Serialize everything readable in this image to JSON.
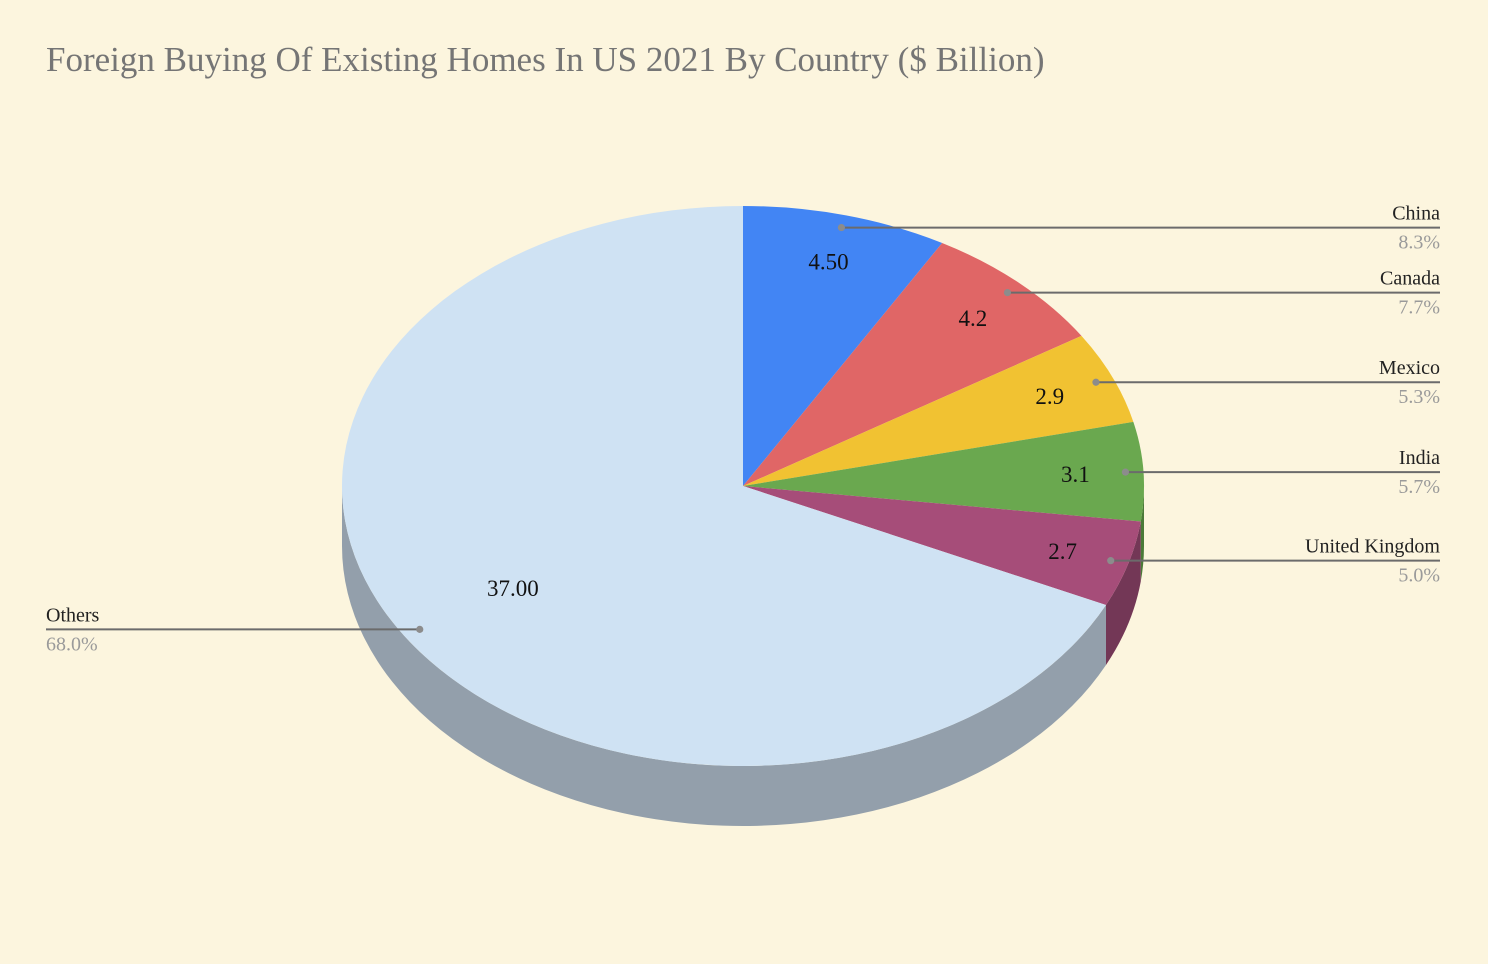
{
  "chart_data": {
    "type": "pie",
    "style": "3d",
    "title": "Foreign Buying Of Existing Homes In US 2021 By Country ($ Billion)",
    "legend": "none",
    "slices": [
      {
        "name": "China",
        "value": 4.5,
        "value_label": "4.50",
        "percent_label": "8.3%",
        "color": "#4285f4",
        "side_color": "#2c5db3"
      },
      {
        "name": "Canada",
        "value": 4.2,
        "value_label": "4.2",
        "percent_label": "7.7%",
        "color": "#e06666",
        "side_color": "#a84747"
      },
      {
        "name": "Mexico",
        "value": 2.9,
        "value_label": "2.9",
        "percent_label": "5.3%",
        "color": "#f1c232",
        "side_color": "#b48f22"
      },
      {
        "name": "India",
        "value": 3.1,
        "value_label": "3.1",
        "percent_label": "5.7%",
        "color": "#6aa84f",
        "side_color": "#4b7a38"
      },
      {
        "name": "United Kingdom",
        "value": 2.7,
        "value_label": "2.7",
        "percent_label": "5.0%",
        "color": "#a64d79",
        "side_color": "#733756"
      },
      {
        "name": "Others",
        "value": 37.0,
        "value_label": "37.00",
        "percent_label": "68.0%",
        "color": "#cfe2f3",
        "side_color": "#939fab"
      }
    ]
  }
}
